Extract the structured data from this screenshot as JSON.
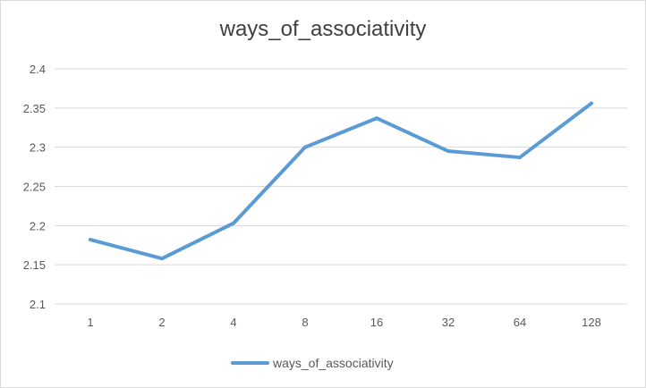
{
  "chart_data": {
    "type": "line",
    "title": "ways_of_associativity",
    "xlabel": "",
    "ylabel": "",
    "categories": [
      "1",
      "2",
      "4",
      "8",
      "16",
      "32",
      "64",
      "128"
    ],
    "series": [
      {
        "name": "ways_of_associativity",
        "values": [
          2.182,
          2.158,
          2.203,
          2.3,
          2.337,
          2.295,
          2.287,
          2.356
        ],
        "color": "#5b9bd5"
      }
    ],
    "ylim": [
      2.1,
      2.4
    ],
    "yticks": [
      "2.1",
      "2.15",
      "2.2",
      "2.25",
      "2.3",
      "2.35",
      "2.4"
    ],
    "grid": true,
    "legend_position": "bottom"
  }
}
